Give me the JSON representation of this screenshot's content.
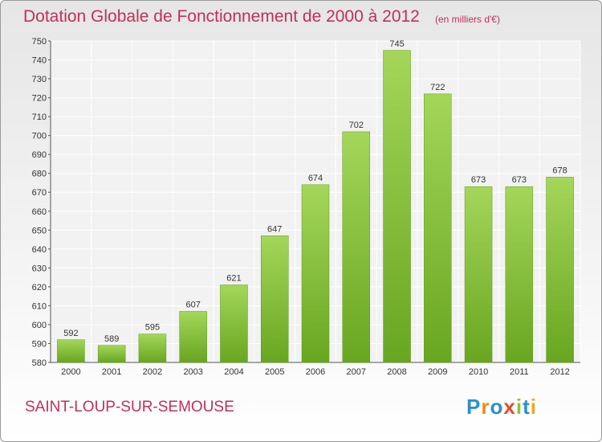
{
  "header": {
    "title": "Dotation Globale de Fonctionnement de 2000 à 2012",
    "unit": "(en milliers d'€)"
  },
  "footer": {
    "commune": "SAINT-LOUP-SUR-SEMOUSE",
    "logo_letters": [
      "P",
      "r",
      "o",
      "x",
      "i",
      "t",
      "i"
    ],
    "logo_colors": [
      "#2a8fd0",
      "#f08a1c",
      "#2a8fd0",
      "#e84a2c",
      "#8bc53f",
      "#2a8fd0",
      "#f0a81c"
    ]
  },
  "colors": {
    "bar_light": "#a4d65a",
    "bar_dark": "#68a620",
    "accent_text": "#c0305a"
  },
  "chart_data": {
    "type": "bar",
    "categories": [
      "2000",
      "2001",
      "2002",
      "2003",
      "2004",
      "2005",
      "2006",
      "2007",
      "2008",
      "2009",
      "2010",
      "2011",
      "2012"
    ],
    "values": [
      592,
      589,
      595,
      607,
      621,
      647,
      674,
      702,
      745,
      722,
      673,
      673,
      678
    ],
    "ylim": [
      580,
      750
    ],
    "yticks": [
      580,
      590,
      600,
      610,
      620,
      630,
      640,
      650,
      660,
      670,
      680,
      690,
      700,
      710,
      720,
      730,
      740,
      750
    ],
    "grid": true
  }
}
